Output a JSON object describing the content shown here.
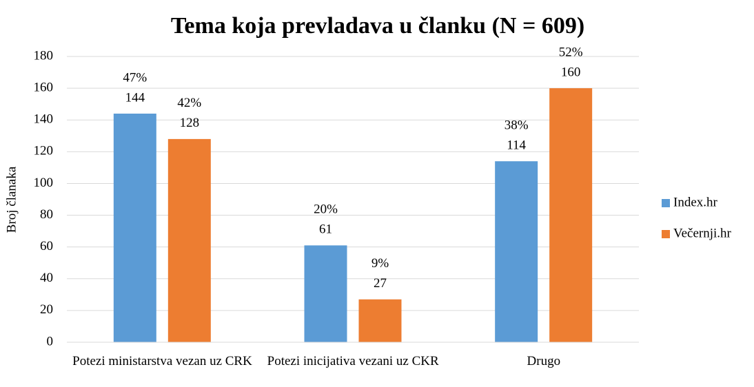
{
  "chart_data": {
    "type": "bar",
    "title": "Tema koja prevladava u članku (N = 609)",
    "y_label": "Broj članaka",
    "categories": [
      "Potezi ministarstva vezan uz CRK",
      "Potezi inicijativa vezani uz CKR",
      "Drugo"
    ],
    "series": [
      {
        "name": "Index.hr",
        "color": "#5b9bd5",
        "values": [
          144,
          61,
          114
        ],
        "share_labels": [
          "47%",
          "20%",
          "38%"
        ]
      },
      {
        "name": "Večernji.hr",
        "color": "#ed7d31",
        "values": [
          128,
          27,
          160
        ],
        "share_labels": [
          "42%",
          "9%",
          "52%"
        ]
      }
    ],
    "ylim": [
      0,
      180
    ],
    "yticks": [
      0,
      20,
      40,
      60,
      80,
      100,
      120,
      140,
      160,
      180
    ],
    "grid": true,
    "legend": "right"
  }
}
